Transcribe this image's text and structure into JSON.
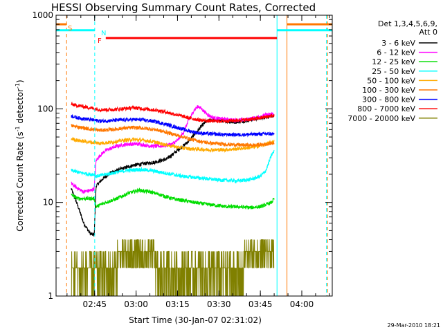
{
  "chart_data": {
    "type": "line",
    "title": "HESSI Observing Summary Count Rates, Corrected",
    "xlabel": "Start Time (30-Jan-07 02:31:02)",
    "ylabel_pre": "Corrected Count Rate (s",
    "ylabel_sup1": "-1",
    "ylabel_mid": " detector",
    "ylabel_sup2": "-1",
    "ylabel_post": ")",
    "y_scale": "log",
    "ylim": [
      1,
      1000
    ],
    "xlim_minutes": [
      0,
      100
    ],
    "x_ticks": [
      {
        "minute": 13.97,
        "label": "02:45"
      },
      {
        "minute": 28.97,
        "label": "03:00"
      },
      {
        "minute": 43.97,
        "label": "03:15"
      },
      {
        "minute": 58.97,
        "label": "03:30"
      },
      {
        "minute": 73.97,
        "label": "03:45"
      },
      {
        "minute": 88.97,
        "label": "04:00"
      }
    ],
    "y_ticks": [
      {
        "value": 1,
        "label": "1"
      },
      {
        "value": 10,
        "label": "10"
      },
      {
        "value": 100,
        "label": "100"
      },
      {
        "value": 1000,
        "label": "1000"
      }
    ],
    "legend_header": [
      "Det 1,3,4,5,6,9,",
      "Att 0"
    ],
    "series": [
      {
        "name": "3 - 6 keV",
        "color": "#000000",
        "points": [
          [
            5.5,
            14
          ],
          [
            8,
            9
          ],
          [
            10,
            6
          ],
          [
            12.5,
            4.6
          ],
          [
            13.8,
            4.5
          ],
          [
            14.5,
            15
          ],
          [
            17,
            18
          ],
          [
            20,
            21
          ],
          [
            24,
            23
          ],
          [
            28,
            25
          ],
          [
            32,
            26
          ],
          [
            36,
            27
          ],
          [
            40,
            29
          ],
          [
            44,
            36
          ],
          [
            48,
            45
          ],
          [
            50,
            53
          ],
          [
            52,
            62
          ],
          [
            54,
            72
          ],
          [
            56,
            76
          ],
          [
            60,
            75
          ],
          [
            64,
            72
          ],
          [
            68,
            74
          ],
          [
            72,
            78
          ],
          [
            76,
            82
          ],
          [
            78,
            84
          ],
          [
            79,
            84
          ]
        ]
      },
      {
        "name": "6 - 12 keV",
        "color": "#ff00ff",
        "points": [
          [
            5.5,
            16
          ],
          [
            8,
            14
          ],
          [
            10,
            13
          ],
          [
            12.5,
            13.5
          ],
          [
            13.8,
            14
          ],
          [
            14.5,
            28
          ],
          [
            16,
            32
          ],
          [
            18,
            36
          ],
          [
            22,
            40
          ],
          [
            26,
            42
          ],
          [
            30,
            42
          ],
          [
            34,
            40
          ],
          [
            38,
            40
          ],
          [
            42,
            42
          ],
          [
            44,
            46
          ],
          [
            46,
            55
          ],
          [
            48,
            75
          ],
          [
            50,
            97
          ],
          [
            51.5,
            107
          ],
          [
            53,
            98
          ],
          [
            55,
            86
          ],
          [
            57,
            80
          ],
          [
            60,
            78
          ],
          [
            64,
            76
          ],
          [
            68,
            76
          ],
          [
            72,
            80
          ],
          [
            76,
            86
          ],
          [
            78,
            88
          ],
          [
            79,
            88
          ]
        ]
      },
      {
        "name": "12 - 25 keV",
        "color": "#00dd00",
        "points": [
          [
            5.5,
            12
          ],
          [
            8,
            11
          ],
          [
            12,
            11
          ],
          [
            13.8,
            11
          ],
          [
            14.5,
            9
          ],
          [
            18,
            10
          ],
          [
            22,
            11
          ],
          [
            26,
            12.5
          ],
          [
            30,
            13.5
          ],
          [
            34,
            13
          ],
          [
            38,
            12
          ],
          [
            42,
            11
          ],
          [
            46,
            10.5
          ],
          [
            50,
            10
          ],
          [
            54,
            9.6
          ],
          [
            58,
            9.3
          ],
          [
            62,
            9
          ],
          [
            66,
            9
          ],
          [
            70,
            8.8
          ],
          [
            74,
            9
          ],
          [
            78,
            10
          ],
          [
            79,
            11
          ]
        ]
      },
      {
        "name": "25 - 50 keV",
        "color": "#00ffff",
        "points": [
          [
            5.5,
            22
          ],
          [
            8,
            21
          ],
          [
            12,
            20
          ],
          [
            13.8,
            20
          ],
          [
            14.5,
            19
          ],
          [
            18,
            20
          ],
          [
            22,
            21
          ],
          [
            26,
            22
          ],
          [
            30,
            22.5
          ],
          [
            34,
            22
          ],
          [
            38,
            21
          ],
          [
            42,
            20
          ],
          [
            46,
            19
          ],
          [
            50,
            18.5
          ],
          [
            54,
            18
          ],
          [
            58,
            17.5
          ],
          [
            62,
            17.2
          ],
          [
            66,
            17
          ],
          [
            70,
            17.5
          ],
          [
            74,
            19
          ],
          [
            76,
            22
          ],
          [
            78,
            32
          ],
          [
            79,
            35
          ]
        ]
      },
      {
        "name": "50 - 100 keV",
        "color": "#ffaa00",
        "points": [
          [
            5.5,
            48
          ],
          [
            8,
            46
          ],
          [
            12,
            44
          ],
          [
            16,
            43
          ],
          [
            20,
            44
          ],
          [
            24,
            46
          ],
          [
            28,
            47
          ],
          [
            32,
            46
          ],
          [
            36,
            44
          ],
          [
            40,
            41
          ],
          [
            44,
            39
          ],
          [
            48,
            37.5
          ],
          [
            52,
            37
          ],
          [
            56,
            36.5
          ],
          [
            60,
            36.5
          ],
          [
            64,
            37
          ],
          [
            68,
            38
          ],
          [
            72,
            39
          ],
          [
            76,
            42
          ],
          [
            78,
            44
          ],
          [
            79,
            45
          ]
        ]
      },
      {
        "name": "100 - 300 keV",
        "color": "#ff7700",
        "points": [
          [
            5.5,
            66
          ],
          [
            8,
            64
          ],
          [
            12,
            61
          ],
          [
            16,
            59
          ],
          [
            20,
            60
          ],
          [
            24,
            62
          ],
          [
            28,
            63
          ],
          [
            32,
            62
          ],
          [
            36,
            60
          ],
          [
            40,
            56
          ],
          [
            44,
            52
          ],
          [
            48,
            48
          ],
          [
            52,
            45
          ],
          [
            56,
            43
          ],
          [
            60,
            42
          ],
          [
            64,
            41.5
          ],
          [
            68,
            41
          ],
          [
            72,
            41
          ],
          [
            76,
            42
          ],
          [
            78,
            43
          ],
          [
            79,
            43
          ]
        ]
      },
      {
        "name": "300 - 800 keV",
        "color": "#0000ff",
        "points": [
          [
            5.5,
            84
          ],
          [
            8,
            80
          ],
          [
            12,
            77
          ],
          [
            16,
            74
          ],
          [
            20,
            75
          ],
          [
            24,
            76
          ],
          [
            28,
            77
          ],
          [
            32,
            76
          ],
          [
            36,
            73
          ],
          [
            40,
            68
          ],
          [
            44,
            63
          ],
          [
            48,
            58
          ],
          [
            52,
            55
          ],
          [
            56,
            54
          ],
          [
            60,
            53
          ],
          [
            64,
            53
          ],
          [
            68,
            53
          ],
          [
            72,
            53.5
          ],
          [
            76,
            54
          ],
          [
            78,
            54
          ],
          [
            79,
            54
          ]
        ]
      },
      {
        "name": "800 - 7000 keV",
        "color": "#ff0000",
        "points": [
          [
            5.5,
            112
          ],
          [
            8,
            108
          ],
          [
            12,
            103
          ],
          [
            16,
            98
          ],
          [
            20,
            98
          ],
          [
            24,
            100
          ],
          [
            28,
            103
          ],
          [
            32,
            100
          ],
          [
            36,
            97
          ],
          [
            40,
            92
          ],
          [
            44,
            86
          ],
          [
            48,
            80
          ],
          [
            52,
            76
          ],
          [
            56,
            74
          ],
          [
            60,
            74
          ],
          [
            64,
            75
          ],
          [
            68,
            76
          ],
          [
            72,
            78
          ],
          [
            76,
            82
          ],
          [
            78,
            84
          ],
          [
            79,
            84
          ]
        ]
      },
      {
        "name": "7000 - 20000 keV",
        "color": "#808000",
        "points": [
          [
            5.5,
            2
          ],
          [
            10,
            2
          ],
          [
            13.8,
            2
          ],
          [
            16,
            2.5
          ],
          [
            20,
            2
          ],
          [
            24,
            3
          ],
          [
            28,
            3.5
          ],
          [
            32,
            3
          ],
          [
            36,
            2.5
          ],
          [
            40,
            2
          ],
          [
            44,
            2
          ],
          [
            48,
            2
          ],
          [
            52,
            2
          ],
          [
            56,
            2
          ],
          [
            60,
            2
          ],
          [
            64,
            2
          ],
          [
            68,
            2.5
          ],
          [
            72,
            3
          ],
          [
            76,
            2.5
          ],
          [
            79,
            2.5
          ]
        ]
      }
    ],
    "annotations": {
      "flag_s": "S",
      "flag_n": "N",
      "flag_f": "F",
      "flags": [
        {
          "code": "S",
          "color": "#ff7700",
          "segments": [
            [
              0,
              3.8
            ],
            [
              83.6,
              100
            ]
          ],
          "level": 800
        },
        {
          "code": "N",
          "color": "#00ffff",
          "segments": [
            [
              0,
              14
            ],
            [
              80,
              100
            ]
          ],
          "level": 690
        },
        {
          "code": "F",
          "color": "#ff0000",
          "segments": [
            [
              18,
              80
            ]
          ],
          "level": 570
        }
      ],
      "vlines": [
        {
          "minute": 3.8,
          "color": "#ff7700",
          "style": "dashed"
        },
        {
          "minute": 14,
          "color": "#00ffff",
          "style": "dashed"
        },
        {
          "minute": 80,
          "color": "#00ffff",
          "style": "solid"
        },
        {
          "minute": 83.6,
          "color": "#ff7700",
          "style": "solid"
        },
        {
          "minute": 97.9,
          "color": "#00ffff",
          "style": "dashed"
        },
        {
          "minute": 98.3,
          "color": "#ff7700",
          "style": "dashed"
        }
      ]
    },
    "timestamp": "29-Mar-2010 18:21"
  }
}
